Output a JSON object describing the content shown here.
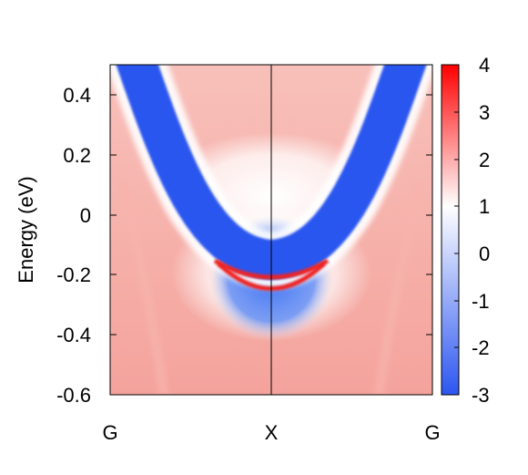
{
  "chart_data": {
    "type": "heatmap",
    "title": "",
    "xlabel": "",
    "ylabel": "Energy (eV)",
    "x_ticks": [
      "G",
      "X",
      "G"
    ],
    "y_ticks": [
      "0.4",
      "0.2",
      "0",
      "-0.2",
      "-0.4",
      "-0.6"
    ],
    "ylim": [
      -0.6,
      0.5
    ],
    "colorbar": {
      "range": [
        -3,
        4
      ],
      "ticks": [
        "4",
        "3",
        "2",
        "1",
        "0",
        "-1",
        "-2",
        "-3"
      ],
      "colors": [
        "#ff0000",
        "#ffffff",
        "#2c56f0"
      ]
    },
    "features": {
      "bulk_valence_band": {
        "color": "#2c56f0",
        "apex_x": 0.5,
        "apex_energy": 0.05
      },
      "lower_bulk_pocket": {
        "color": "#3b6ef2",
        "min_energy": -0.42
      },
      "surface_bands": [
        {
          "color": "#ee2222",
          "min_energy": -0.2,
          "x_range": [
            0.32,
            0.68
          ]
        },
        {
          "color": "#ee2222",
          "min_energy": -0.26,
          "x_range": [
            0.32,
            0.68
          ]
        }
      ],
      "background_color": "#f6a8a2"
    }
  }
}
